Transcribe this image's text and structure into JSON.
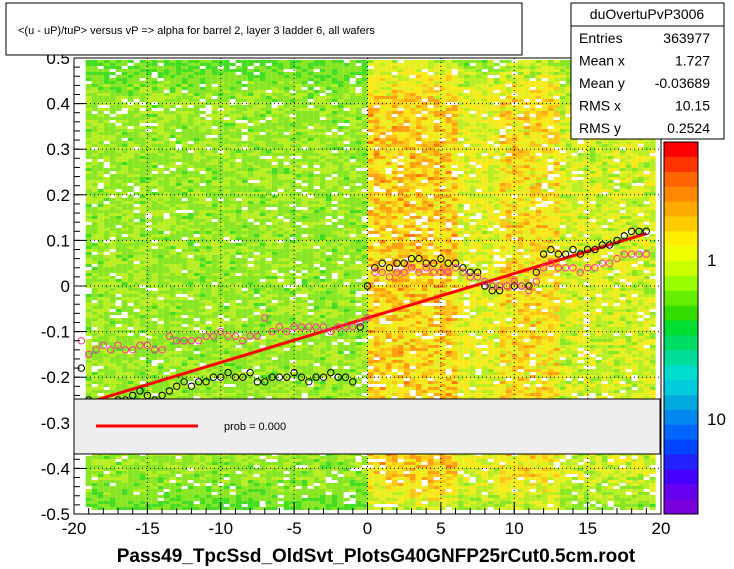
{
  "chart_data": {
    "type": "scatter",
    "title": "<(u - uP)/tuP> versus   vP => alpha for barrel 2, layer 3 ladder 6, all wafers",
    "footer": "Pass49_TpcSsd_OldSvt_PlotsG40GNFP25rCut0.5cm.root",
    "xlim": [
      -20,
      20
    ],
    "ylim": [
      -0.5,
      0.5
    ],
    "x_ticks": [
      "-20",
      "-15",
      "-10",
      "-5",
      "0",
      "5",
      "10",
      "15",
      "20"
    ],
    "y_ticks": [
      "-0.5",
      "-0.4",
      "-0.3",
      "-0.2",
      "-0.1",
      "0",
      "0.1",
      "0.2",
      "0.3",
      "0.4",
      "0.5"
    ],
    "colorbar_ticks": [
      "10",
      "1"
    ],
    "grid": true,
    "stats": {
      "name": "duOvertuPvP3006",
      "rows": [
        {
          "label": "Entries",
          "value": "363977"
        },
        {
          "label": "Mean x",
          "value": "1.727"
        },
        {
          "label": "Mean y",
          "value": "-0.03689"
        },
        {
          "label": "RMS x",
          "value": "10.15"
        },
        {
          "label": "RMS y",
          "value": "0.2524"
        }
      ]
    },
    "legend": {
      "label": "prob = 0.000",
      "color": "#ff0000"
    },
    "fit_line": {
      "x": [
        -20,
        19
      ],
      "y": [
        -0.265,
        0.115
      ],
      "color": "#ff0000"
    },
    "series": [
      {
        "marker": "open-circle",
        "color": "#000000",
        "x": [
          -19.5,
          -19,
          -18.5,
          -18,
          -17.5,
          -17,
          -16.5,
          -16,
          -15.5,
          -15,
          -14.5,
          -14,
          -13.5,
          -13,
          -12.5,
          -12,
          -11.5,
          -11,
          -10.5,
          -10,
          -9.5,
          -9,
          -8.5,
          -8,
          -7.5,
          -7,
          -6.5,
          -6,
          -5.5,
          -5,
          -4.5,
          -4,
          -3.5,
          -3,
          -2.5,
          -2,
          -1.5,
          -1,
          -0.5,
          0,
          0.5,
          1,
          1.5,
          2,
          2.5,
          3,
          3.5,
          4,
          4.5,
          5,
          5.5,
          6,
          6.5,
          7,
          7.5,
          8,
          8.5,
          9,
          9.5,
          10,
          10.5,
          11,
          11.5,
          12,
          12.5,
          13,
          13.5,
          14,
          14.5,
          15,
          15.5,
          16,
          16.5,
          17,
          17.5,
          18,
          18.5,
          19
        ],
        "y": [
          -0.18,
          -0.25,
          -0.27,
          -0.26,
          -0.26,
          -0.25,
          -0.25,
          -0.24,
          -0.23,
          -0.24,
          -0.25,
          -0.24,
          -0.23,
          -0.22,
          -0.21,
          -0.22,
          -0.21,
          -0.21,
          -0.2,
          -0.2,
          -0.19,
          -0.2,
          -0.2,
          -0.19,
          -0.21,
          -0.21,
          -0.2,
          -0.2,
          -0.2,
          -0.19,
          -0.2,
          -0.21,
          -0.2,
          -0.2,
          -0.19,
          -0.2,
          -0.2,
          -0.21,
          -0.09,
          0.0,
          0.04,
          0.05,
          0.04,
          0.05,
          0.05,
          0.06,
          0.06,
          0.05,
          0.05,
          0.06,
          0.05,
          0.05,
          0.04,
          0.03,
          0.03,
          0.0,
          -0.01,
          -0.01,
          0.0,
          0.0,
          0.0,
          0.0,
          0.03,
          0.07,
          0.08,
          0.07,
          0.07,
          0.08,
          0.07,
          0.08,
          0.08,
          0.09,
          0.09,
          0.1,
          0.11,
          0.12,
          0.12,
          0.12
        ]
      },
      {
        "marker": "open-circle",
        "color": "#ff3399",
        "x": [
          -19.5,
          -19,
          -18.5,
          -18,
          -17.5,
          -17,
          -16.5,
          -16,
          -15.5,
          -15,
          -14.5,
          -14,
          -13.5,
          -13,
          -12.5,
          -12,
          -11.5,
          -11,
          -10.5,
          -10,
          -9.5,
          -9,
          -8.5,
          -8,
          -7.5,
          -7,
          -6.5,
          -6,
          -5.5,
          -5,
          -4.5,
          -4,
          -3.5,
          -3,
          -2.5,
          -2,
          -1.5,
          -1,
          -0.5,
          0,
          0.5,
          1,
          1.5,
          2,
          2.5,
          3,
          3.5,
          4,
          4.5,
          5,
          5.5,
          6,
          6.5,
          7,
          7.5,
          8,
          8.5,
          9,
          9.5,
          10,
          10.5,
          11,
          11.5,
          12,
          12.5,
          13,
          13.5,
          14,
          14.5,
          15,
          15.5,
          16,
          16.5,
          17,
          17.5,
          18,
          18.5,
          19
        ],
        "y": [
          -0.12,
          -0.15,
          -0.14,
          -0.13,
          -0.14,
          -0.13,
          -0.14,
          -0.14,
          -0.13,
          -0.13,
          -0.14,
          -0.14,
          -0.11,
          -0.12,
          -0.12,
          -0.12,
          -0.12,
          -0.11,
          -0.11,
          -0.1,
          -0.11,
          -0.11,
          -0.12,
          -0.11,
          -0.11,
          -0.07,
          -0.1,
          -0.09,
          -0.1,
          -0.09,
          -0.09,
          -0.09,
          -0.09,
          -0.09,
          -0.1,
          -0.09,
          -0.09,
          -0.09,
          -0.08,
          -0.07,
          0.03,
          0.03,
          0.02,
          0.03,
          0.03,
          0.04,
          0.03,
          0.04,
          0.03,
          0.03,
          0.03,
          0.04,
          0.03,
          0.02,
          0.02,
          0.01,
          0.0,
          0.0,
          0.0,
          0.01,
          0.0,
          -0.01,
          0.01,
          0.04,
          0.05,
          0.04,
          0.04,
          0.04,
          0.03,
          0.04,
          0.04,
          0.05,
          0.05,
          0.06,
          0.07,
          0.07,
          0.07,
          0.07
        ]
      }
    ]
  }
}
